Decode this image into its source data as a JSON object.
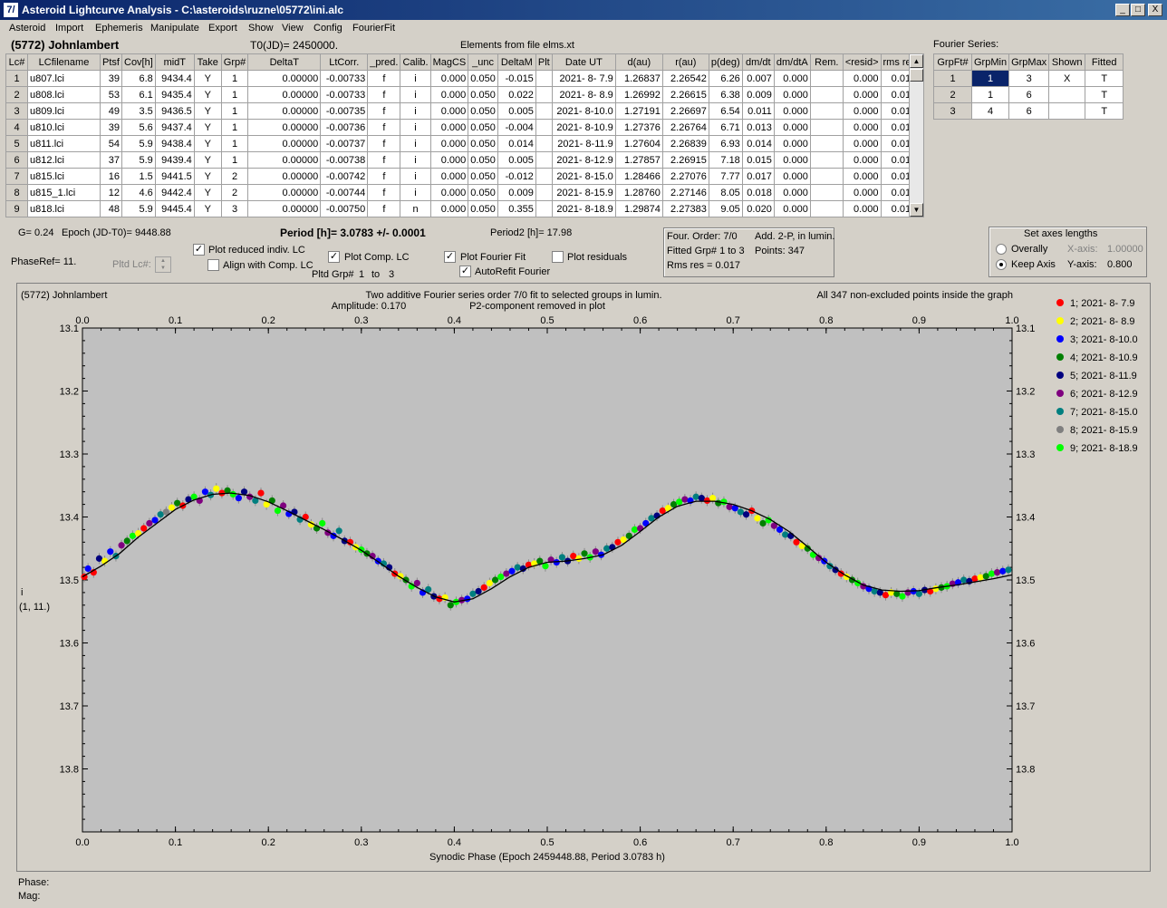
{
  "window": {
    "title": "Asteroid Lightcurve Analysis - C:\\asteroids\\ruzne\\05772\\ini.alc",
    "app_icon": "7/",
    "minimize_label": "_",
    "maximize_label": "□",
    "close_label": "X"
  },
  "menu": [
    "Asteroid",
    "Import",
    "Ephemeris",
    "Manipulate",
    "Export",
    "Show",
    "View",
    "Config",
    "FourierFit"
  ],
  "header": {
    "asteroid": "(5772) Johnlambert",
    "t0": "T0(JD)= 2450000.",
    "elements": "Elements from file elms.xt",
    "fourier_title": "Fourier Series:"
  },
  "lc_table": {
    "columns": [
      "Lc#",
      "LCfilename",
      "Ptsf",
      "Cov[h]",
      "midT",
      "Take",
      "Grp#",
      "DeltaT",
      "LtCorr.",
      "_pred.",
      "Calib.",
      "MagCS",
      "_unc",
      "DeltaM",
      "Plt",
      "Date UT",
      "d(au)",
      "r(au)",
      "p(deg)",
      "dm/dt",
      "dm/dtA",
      "Rem.",
      "<resid>",
      "rms res"
    ],
    "rows": [
      [
        "1",
        "u807.lci",
        "39",
        "6.8",
        "9434.4",
        "Y",
        "1",
        "0.00000",
        "-0.00733",
        "f",
        "i",
        "0.000",
        "0.050",
        "-0.015",
        "",
        "2021- 8- 7.9",
        "1.26837",
        "2.26542",
        "6.26",
        "0.007",
        "0.000",
        "",
        "0.000",
        "0.017"
      ],
      [
        "2",
        "u808.lci",
        "53",
        "6.1",
        "9435.4",
        "Y",
        "1",
        "0.00000",
        "-0.00733",
        "f",
        "i",
        "0.000",
        "0.050",
        "0.022",
        "",
        "2021- 8- 8.9",
        "1.26992",
        "2.26615",
        "6.38",
        "0.009",
        "0.000",
        "",
        "0.000",
        "0.017"
      ],
      [
        "3",
        "u809.lci",
        "49",
        "3.5",
        "9436.5",
        "Y",
        "1",
        "0.00000",
        "-0.00735",
        "f",
        "i",
        "0.000",
        "0.050",
        "0.005",
        "",
        "2021- 8-10.0",
        "1.27191",
        "2.26697",
        "6.54",
        "0.011",
        "0.000",
        "",
        "0.000",
        "0.019"
      ],
      [
        "4",
        "u810.lci",
        "39",
        "5.6",
        "9437.4",
        "Y",
        "1",
        "0.00000",
        "-0.00736",
        "f",
        "i",
        "0.000",
        "0.050",
        "-0.004",
        "",
        "2021- 8-10.9",
        "1.27376",
        "2.26764",
        "6.71",
        "0.013",
        "0.000",
        "",
        "0.000",
        "0.013"
      ],
      [
        "5",
        "u811.lci",
        "54",
        "5.9",
        "9438.4",
        "Y",
        "1",
        "0.00000",
        "-0.00737",
        "f",
        "i",
        "0.000",
        "0.050",
        "0.014",
        "",
        "2021- 8-11.9",
        "1.27604",
        "2.26839",
        "6.93",
        "0.014",
        "0.000",
        "",
        "0.000",
        "0.015"
      ],
      [
        "6",
        "u812.lci",
        "37",
        "5.9",
        "9439.4",
        "Y",
        "1",
        "0.00000",
        "-0.00738",
        "f",
        "i",
        "0.000",
        "0.050",
        "0.005",
        "",
        "2021- 8-12.9",
        "1.27857",
        "2.26915",
        "7.18",
        "0.015",
        "0.000",
        "",
        "0.000",
        "0.014"
      ],
      [
        "7",
        "u815.lci",
        "16",
        "1.5",
        "9441.5",
        "Y",
        "2",
        "0.00000",
        "-0.00742",
        "f",
        "i",
        "0.000",
        "0.050",
        "-0.012",
        "",
        "2021- 8-15.0",
        "1.28466",
        "2.27076",
        "7.77",
        "0.017",
        "0.000",
        "",
        "0.000",
        "0.017"
      ],
      [
        "8",
        "u815_1.lci",
        "12",
        "4.6",
        "9442.4",
        "Y",
        "2",
        "0.00000",
        "-0.00744",
        "f",
        "i",
        "0.000",
        "0.050",
        "0.009",
        "",
        "2021- 8-15.9",
        "1.28760",
        "2.27146",
        "8.05",
        "0.018",
        "0.000",
        "",
        "0.000",
        "0.013"
      ],
      [
        "9",
        "u818.lci",
        "48",
        "5.9",
        "9445.4",
        "Y",
        "3",
        "0.00000",
        "-0.00750",
        "f",
        "n",
        "0.000",
        "0.050",
        "0.355",
        "",
        "2021- 8-18.9",
        "1.29874",
        "2.27383",
        "9.05",
        "0.020",
        "0.000",
        "",
        "0.000",
        "0.016"
      ]
    ]
  },
  "fourier_table": {
    "columns": [
      "GrpFt#",
      "GrpMin",
      "GrpMax",
      "Shown",
      "Fitted"
    ],
    "rows": [
      [
        "1",
        "1",
        "3",
        "X",
        "T"
      ],
      [
        "2",
        "1",
        "6",
        "",
        "T"
      ],
      [
        "3",
        "4",
        "6",
        "",
        "T"
      ]
    ]
  },
  "controls": {
    "g": "G= 0.24",
    "epoch": "Epoch (JD-T0)= 9448.88",
    "period": "Period [h]= 3.0783 +/- 0.0001",
    "period2": "Period2 [h]= 17.98",
    "phaseref": "PhaseRef= 11.",
    "pltd_lc": "Pltd Lc#:",
    "plot_reduced": "Plot reduced indiv. LC",
    "align_comp": "Align with Comp. LC",
    "plot_comp": "Plot Comp. LC",
    "pltd_grp": "Pltd Grp#",
    "pltd_grp_from": "1",
    "pltd_grp_to_label": "to",
    "pltd_grp_to": "3",
    "plot_fourier": "Plot Fourier Fit",
    "autorefit": "AutoRefit Fourier",
    "plot_residuals": "Plot residuals",
    "plot_reduced_checked": "✓",
    "align_comp_checked": "",
    "plot_comp_checked": "✓",
    "plot_fourier_checked": "✓",
    "autorefit_checked": "✓",
    "plot_residuals_checked": ""
  },
  "fourier_info": {
    "order": "Four. Order:  7/0",
    "add": "Add. 2-P, in lumin.",
    "fitted": "Fitted Grp# 1 to 3",
    "points": "Points: 347",
    "rms": "Rms res     = 0.017"
  },
  "axes_lengths": {
    "title": "Set axes lengths",
    "overall": "Overally",
    "keep": "Keep Axis",
    "xaxis_label": "X-axis:",
    "xaxis_value": "1.00000",
    "yaxis_label": "Y-axis:",
    "yaxis_value": "0.800"
  },
  "chart_data": {
    "type": "scatter",
    "title_left": "(5772) Johnlambert",
    "title_center": "Two additive Fourier series order 7/0 fit to selected groups in lumin.",
    "amplitude": "Amplitude: 0.170",
    "p2note": "P2-component removed in plot",
    "title_right": "All 347 non-excluded points inside the graph",
    "xlabel": "Synodic Phase (Epoch 2459448.88, Period 3.0783 h)",
    "ylabel": "i",
    "ylabel2": "(1, 11.)",
    "xlim": [
      0,
      1
    ],
    "ylim": [
      13.1,
      13.9
    ],
    "y_inverted": true,
    "x_ticks": [
      "0.0",
      "0.1",
      "0.2",
      "0.3",
      "0.4",
      "0.5",
      "0.6",
      "0.7",
      "0.8",
      "0.9",
      "1.0"
    ],
    "y_ticks": [
      "13.1",
      "13.2",
      "13.3",
      "13.4",
      "13.5",
      "13.6",
      "13.7",
      "13.8"
    ],
    "legend_position": "right",
    "series": [
      {
        "name": "1; 2021- 8- 7.9",
        "color": "#ff0000"
      },
      {
        "name": "2; 2021- 8- 8.9",
        "color": "#ffff00"
      },
      {
        "name": "3; 2021- 8-10.0",
        "color": "#0000ff"
      },
      {
        "name": "4; 2021- 8-10.9",
        "color": "#007f00"
      },
      {
        "name": "5; 2021- 8-11.9",
        "color": "#00007f"
      },
      {
        "name": "6; 2021- 8-12.9",
        "color": "#7f007f"
      },
      {
        "name": "7; 2021- 8-15.0",
        "color": "#007f7f"
      },
      {
        "name": "8; 2021- 8-15.9",
        "color": "#7f7f7f"
      },
      {
        "name": "9; 2021- 8-18.9",
        "color": "#00ff00"
      }
    ],
    "fit_curve": {
      "x": [
        0.0,
        0.02,
        0.04,
        0.06,
        0.08,
        0.1,
        0.12,
        0.14,
        0.16,
        0.18,
        0.2,
        0.22,
        0.24,
        0.26,
        0.28,
        0.3,
        0.32,
        0.34,
        0.36,
        0.38,
        0.4,
        0.42,
        0.44,
        0.46,
        0.48,
        0.5,
        0.52,
        0.54,
        0.56,
        0.58,
        0.6,
        0.62,
        0.64,
        0.66,
        0.68,
        0.7,
        0.72,
        0.74,
        0.76,
        0.78,
        0.8,
        0.82,
        0.84,
        0.86,
        0.88,
        0.9,
        0.92,
        0.94,
        0.96,
        0.98,
        1.0
      ],
      "y": [
        13.495,
        13.478,
        13.458,
        13.432,
        13.41,
        13.388,
        13.373,
        13.364,
        13.362,
        13.366,
        13.376,
        13.39,
        13.405,
        13.42,
        13.436,
        13.453,
        13.473,
        13.494,
        13.512,
        13.527,
        13.535,
        13.53,
        13.514,
        13.495,
        13.48,
        13.472,
        13.47,
        13.466,
        13.46,
        13.445,
        13.423,
        13.4,
        13.383,
        13.375,
        13.375,
        13.38,
        13.39,
        13.404,
        13.423,
        13.447,
        13.472,
        13.492,
        13.508,
        13.516,
        13.518,
        13.517,
        13.512,
        13.508,
        13.503,
        13.498,
        13.492
      ]
    },
    "points": [
      [
        0.002,
        13.495,
        0
      ],
      [
        0.006,
        13.482,
        2
      ],
      [
        0.012,
        13.488,
        0
      ],
      [
        0.018,
        13.466,
        4
      ],
      [
        0.024,
        13.47,
        1
      ],
      [
        0.03,
        13.455,
        2
      ],
      [
        0.036,
        13.462,
        6
      ],
      [
        0.042,
        13.445,
        5
      ],
      [
        0.048,
        13.438,
        3
      ],
      [
        0.054,
        13.43,
        8
      ],
      [
        0.06,
        13.426,
        1
      ],
      [
        0.066,
        13.418,
        0
      ],
      [
        0.072,
        13.41,
        5
      ],
      [
        0.078,
        13.405,
        2
      ],
      [
        0.084,
        13.396,
        6
      ],
      [
        0.09,
        13.392,
        7
      ],
      [
        0.096,
        13.385,
        1
      ],
      [
        0.102,
        13.378,
        3
      ],
      [
        0.108,
        13.382,
        0
      ],
      [
        0.114,
        13.372,
        4
      ],
      [
        0.12,
        13.368,
        8
      ],
      [
        0.126,
        13.374,
        5
      ],
      [
        0.132,
        13.36,
        2
      ],
      [
        0.138,
        13.365,
        6
      ],
      [
        0.144,
        13.355,
        1
      ],
      [
        0.15,
        13.362,
        0
      ],
      [
        0.156,
        13.358,
        3
      ],
      [
        0.162,
        13.364,
        8
      ],
      [
        0.168,
        13.37,
        2
      ],
      [
        0.174,
        13.36,
        4
      ],
      [
        0.18,
        13.368,
        5
      ],
      [
        0.186,
        13.374,
        6
      ],
      [
        0.192,
        13.362,
        0
      ],
      [
        0.198,
        13.38,
        1
      ],
      [
        0.204,
        13.374,
        3
      ],
      [
        0.21,
        13.39,
        8
      ],
      [
        0.216,
        13.382,
        5
      ],
      [
        0.222,
        13.395,
        2
      ],
      [
        0.228,
        13.392,
        4
      ],
      [
        0.234,
        13.404,
        6
      ],
      [
        0.24,
        13.4,
        0
      ],
      [
        0.246,
        13.412,
        1
      ],
      [
        0.252,
        13.418,
        3
      ],
      [
        0.258,
        13.41,
        8
      ],
      [
        0.264,
        13.425,
        5
      ],
      [
        0.27,
        13.43,
        2
      ],
      [
        0.276,
        13.422,
        6
      ],
      [
        0.282,
        13.438,
        4
      ],
      [
        0.288,
        13.44,
        0
      ],
      [
        0.294,
        13.448,
        1
      ],
      [
        0.3,
        13.452,
        8
      ],
      [
        0.306,
        13.458,
        3
      ],
      [
        0.312,
        13.462,
        5
      ],
      [
        0.318,
        13.47,
        2
      ],
      [
        0.324,
        13.474,
        6
      ],
      [
        0.33,
        13.48,
        4
      ],
      [
        0.336,
        13.49,
        0
      ],
      [
        0.342,
        13.494,
        1
      ],
      [
        0.348,
        13.5,
        3
      ],
      [
        0.354,
        13.51,
        8
      ],
      [
        0.36,
        13.505,
        5
      ],
      [
        0.366,
        13.52,
        2
      ],
      [
        0.372,
        13.515,
        6
      ],
      [
        0.378,
        13.526,
        4
      ],
      [
        0.384,
        13.53,
        0
      ],
      [
        0.39,
        13.528,
        1
      ],
      [
        0.396,
        13.54,
        3
      ],
      [
        0.402,
        13.535,
        8
      ],
      [
        0.408,
        13.532,
        5
      ],
      [
        0.414,
        13.53,
        2
      ],
      [
        0.42,
        13.522,
        6
      ],
      [
        0.426,
        13.518,
        4
      ],
      [
        0.432,
        13.512,
        0
      ],
      [
        0.438,
        13.505,
        1
      ],
      [
        0.444,
        13.5,
        3
      ],
      [
        0.45,
        13.495,
        8
      ],
      [
        0.456,
        13.49,
        5
      ],
      [
        0.462,
        13.486,
        2
      ],
      [
        0.468,
        13.48,
        6
      ],
      [
        0.474,
        13.482,
        4
      ],
      [
        0.48,
        13.476,
        0
      ],
      [
        0.486,
        13.474,
        1
      ],
      [
        0.492,
        13.47,
        3
      ],
      [
        0.498,
        13.478,
        8
      ],
      [
        0.504,
        13.468,
        5
      ],
      [
        0.51,
        13.472,
        2
      ],
      [
        0.516,
        13.464,
        6
      ],
      [
        0.522,
        13.47,
        4
      ],
      [
        0.528,
        13.462,
        0
      ],
      [
        0.534,
        13.466,
        1
      ],
      [
        0.54,
        13.458,
        3
      ],
      [
        0.546,
        13.464,
        8
      ],
      [
        0.552,
        13.455,
        5
      ],
      [
        0.558,
        13.46,
        2
      ],
      [
        0.564,
        13.45,
        6
      ],
      [
        0.57,
        13.448,
        4
      ],
      [
        0.576,
        13.44,
        0
      ],
      [
        0.582,
        13.436,
        1
      ],
      [
        0.588,
        13.43,
        3
      ],
      [
        0.594,
        13.42,
        8
      ],
      [
        0.6,
        13.418,
        5
      ],
      [
        0.606,
        13.41,
        2
      ],
      [
        0.612,
        13.402,
        6
      ],
      [
        0.618,
        13.398,
        4
      ],
      [
        0.624,
        13.39,
        0
      ],
      [
        0.63,
        13.386,
        1
      ],
      [
        0.636,
        13.38,
        3
      ],
      [
        0.642,
        13.376,
        8
      ],
      [
        0.648,
        13.372,
        5
      ],
      [
        0.654,
        13.374,
        2
      ],
      [
        0.66,
        13.368,
        6
      ],
      [
        0.666,
        13.37,
        4
      ],
      [
        0.672,
        13.374,
        0
      ],
      [
        0.678,
        13.37,
        1
      ],
      [
        0.684,
        13.378,
        3
      ],
      [
        0.69,
        13.376,
        8
      ],
      [
        0.696,
        13.384,
        5
      ],
      [
        0.702,
        13.386,
        2
      ],
      [
        0.708,
        13.392,
        6
      ],
      [
        0.714,
        13.396,
        4
      ],
      [
        0.72,
        13.39,
        0
      ],
      [
        0.726,
        13.402,
        1
      ],
      [
        0.732,
        13.41,
        3
      ],
      [
        0.738,
        13.405,
        8
      ],
      [
        0.744,
        13.414,
        5
      ],
      [
        0.75,
        13.42,
        2
      ],
      [
        0.756,
        13.428,
        6
      ],
      [
        0.762,
        13.43,
        4
      ],
      [
        0.768,
        13.44,
        0
      ],
      [
        0.774,
        13.446,
        1
      ],
      [
        0.78,
        13.45,
        3
      ],
      [
        0.786,
        13.46,
        8
      ],
      [
        0.792,
        13.465,
        5
      ],
      [
        0.798,
        13.47,
        2
      ],
      [
        0.804,
        13.478,
        6
      ],
      [
        0.81,
        13.484,
        4
      ],
      [
        0.816,
        13.49,
        0
      ],
      [
        0.822,
        13.495,
        1
      ],
      [
        0.828,
        13.5,
        3
      ],
      [
        0.834,
        13.505,
        8
      ],
      [
        0.84,
        13.51,
        5
      ],
      [
        0.846,
        13.514,
        2
      ],
      [
        0.852,
        13.518,
        6
      ],
      [
        0.858,
        13.52,
        4
      ],
      [
        0.864,
        13.524,
        0
      ],
      [
        0.87,
        13.52,
        1
      ],
      [
        0.876,
        13.522,
        3
      ],
      [
        0.882,
        13.526,
        8
      ],
      [
        0.888,
        13.52,
        5
      ],
      [
        0.894,
        13.518,
        2
      ],
      [
        0.9,
        13.522,
        6
      ],
      [
        0.906,
        13.516,
        4
      ],
      [
        0.912,
        13.518,
        0
      ],
      [
        0.918,
        13.514,
        1
      ],
      [
        0.924,
        13.512,
        3
      ],
      [
        0.93,
        13.51,
        8
      ],
      [
        0.936,
        13.506,
        5
      ],
      [
        0.942,
        13.504,
        2
      ],
      [
        0.948,
        13.5,
        6
      ],
      [
        0.954,
        13.502,
        4
      ],
      [
        0.96,
        13.498,
        0
      ],
      [
        0.966,
        13.496,
        1
      ],
      [
        0.972,
        13.494,
        3
      ],
      [
        0.978,
        13.49,
        8
      ],
      [
        0.984,
        13.488,
        5
      ],
      [
        0.99,
        13.486,
        2
      ],
      [
        0.996,
        13.484,
        6
      ]
    ]
  },
  "footer": {
    "phase": "Phase:",
    "mag": "Mag:"
  }
}
